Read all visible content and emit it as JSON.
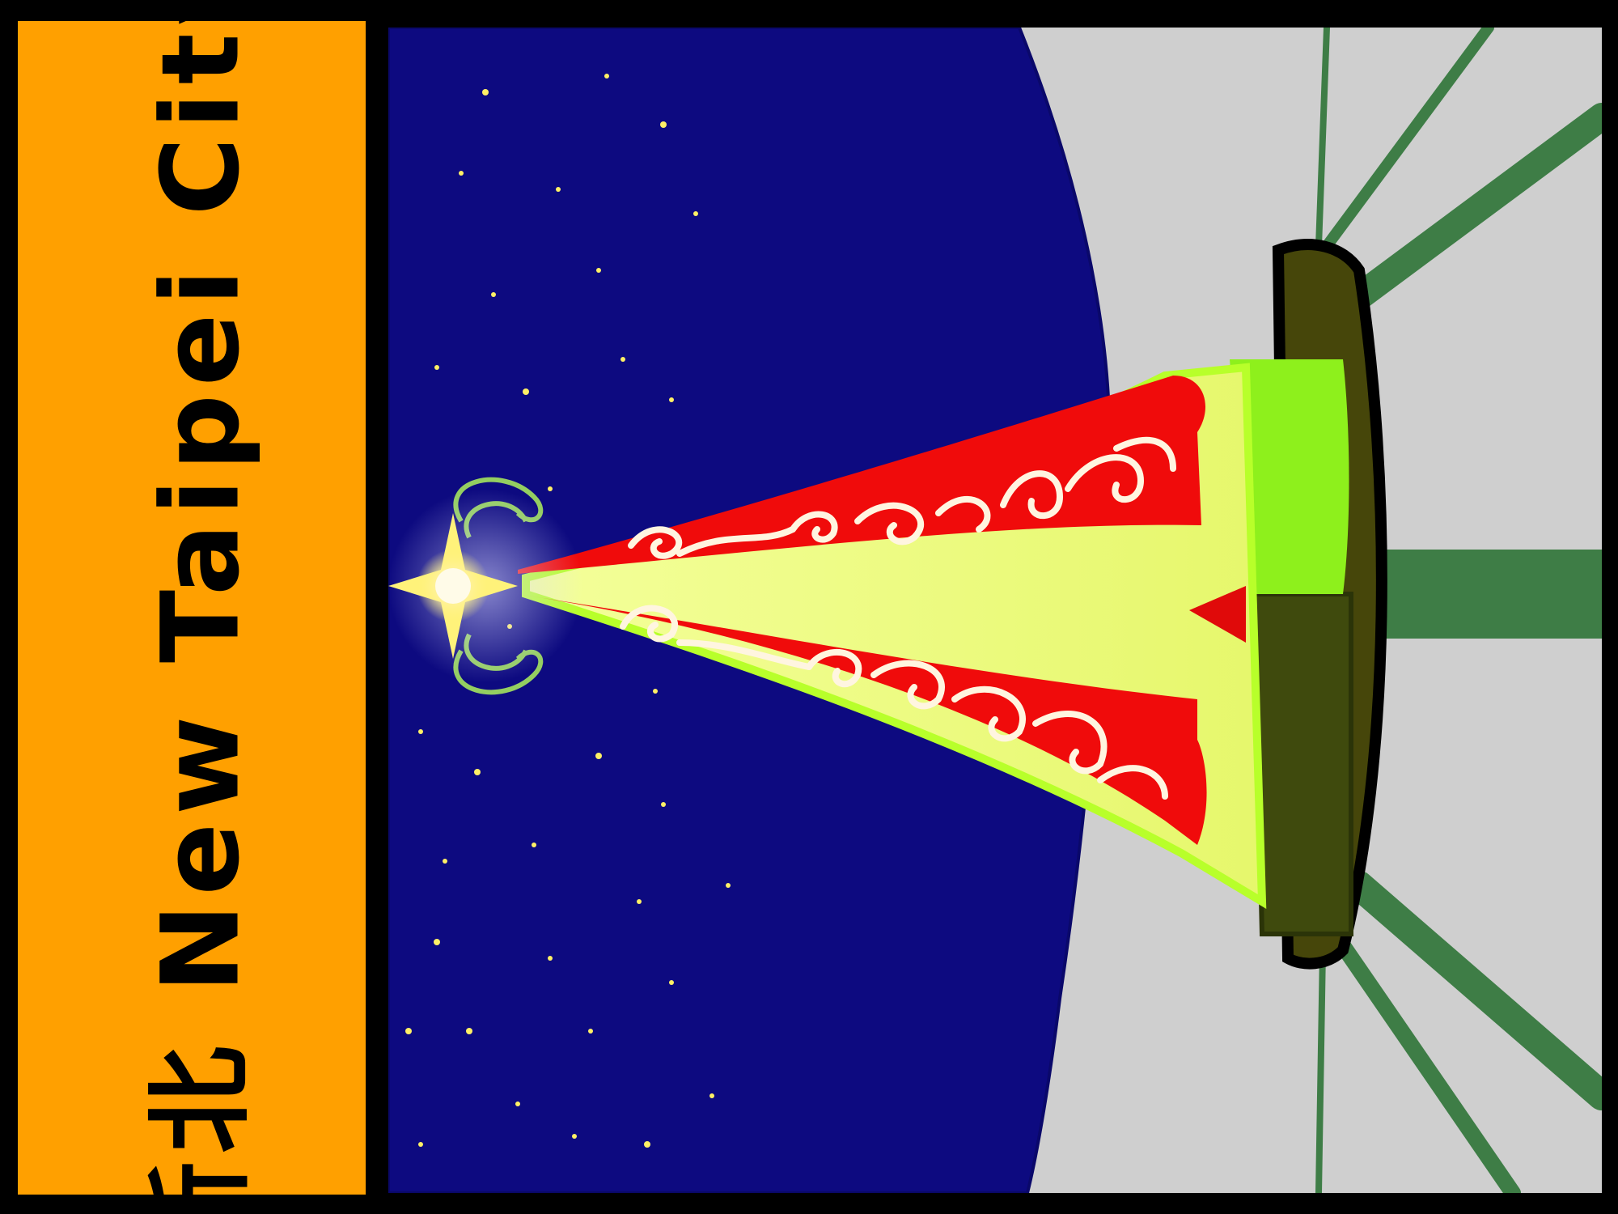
{
  "banner": {
    "title": "新北 New Taipei City"
  },
  "colors": {
    "banner_bg": "#ffa000",
    "sky": "#0d0a80",
    "ground": "#cfcfcf",
    "rays": "#3e7d46",
    "tree_red": "#f00b0b",
    "tree_glow": "#eaf77a",
    "base_green": "#8ef01c",
    "base_dark": "#3f4a0d",
    "star": "#fff27a"
  },
  "icons": [
    "star-icon",
    "swirl-ornament-icon",
    "christmas-tree-icon"
  ]
}
